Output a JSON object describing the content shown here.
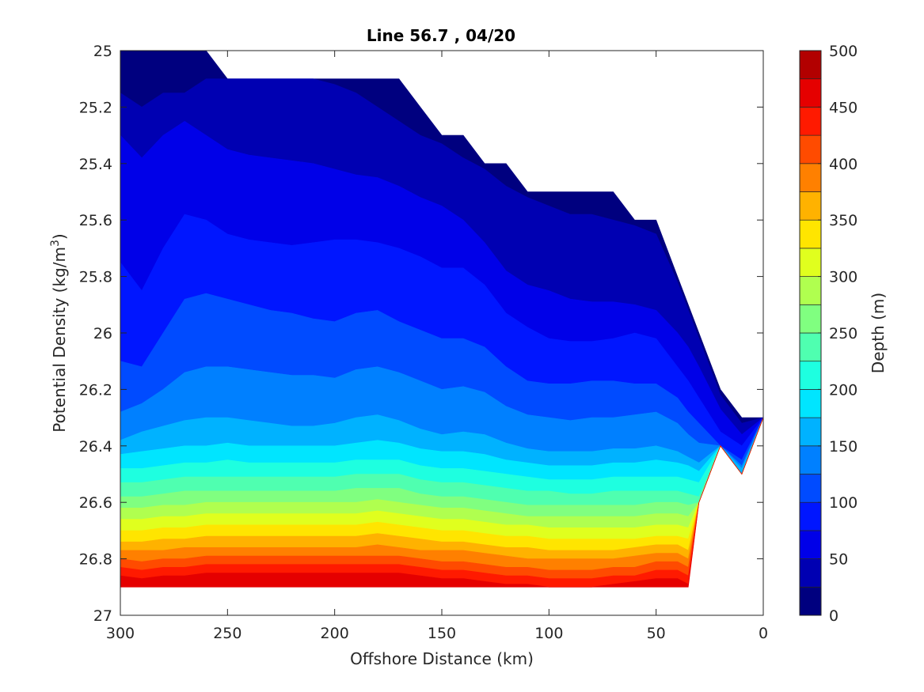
{
  "chart_data": {
    "type": "filled-contour",
    "title": "Line 56.7 , 04/20",
    "xlabel": "Offshore Distance (km)",
    "ylabel": "Potential Density (kg/m",
    "ylabel_sup": "3",
    "ylabel_end": ")",
    "xlim": [
      0,
      300
    ],
    "x_reversed": true,
    "ylim": [
      25,
      27
    ],
    "y_reversed": true,
    "x_ticks": [
      300,
      250,
      200,
      150,
      100,
      50,
      0
    ],
    "y_ticks": [
      25,
      25.2,
      25.4,
      25.6,
      25.8,
      26,
      26.2,
      26.4,
      26.6,
      26.8,
      27
    ],
    "y_tick_labels": [
      "25",
      "25.2",
      "25.4",
      "25.6",
      "25.8",
      "26",
      "26.2",
      "26.4",
      "26.6",
      "26.8",
      "27"
    ],
    "colorbar": {
      "label": "Depth (m)",
      "range": [
        0,
        500
      ],
      "ticks": [
        0,
        50,
        100,
        150,
        200,
        250,
        300,
        350,
        400,
        450,
        500
      ],
      "levels": [
        0,
        25,
        50,
        75,
        100,
        125,
        150,
        175,
        200,
        225,
        250,
        275,
        300,
        325,
        350,
        375,
        400,
        425,
        450,
        475,
        500
      ],
      "colors": [
        "#00007f",
        "#0000b2",
        "#0000e8",
        "#0016ff",
        "#004bff",
        "#0080ff",
        "#00b2ff",
        "#00e5ff",
        "#1effe0",
        "#4fffb0",
        "#80ff80",
        "#b0ff4f",
        "#e0ff1e",
        "#ffe500",
        "#ffb200",
        "#ff8000",
        "#ff4b00",
        "#ff1a00",
        "#e50000",
        "#b20000"
      ]
    },
    "x": [
      300,
      290,
      280,
      270,
      260,
      250,
      240,
      230,
      220,
      210,
      200,
      190,
      180,
      170,
      160,
      150,
      140,
      130,
      120,
      110,
      100,
      90,
      80,
      70,
      60,
      50,
      40,
      35,
      30,
      20,
      10,
      0
    ],
    "boundary": {
      "top": [
        25,
        25,
        25,
        25,
        25,
        25.1,
        25.1,
        25.1,
        25.1,
        25.1,
        25.1,
        25.1,
        25.1,
        25.1,
        25.2,
        25.3,
        25.3,
        25.4,
        25.4,
        25.5,
        25.5,
        25.5,
        25.5,
        25.5,
        25.6,
        25.6,
        25.8,
        25.9,
        26.0,
        26.2,
        26.3,
        26.3
      ],
      "bottom": [
        26.9,
        26.9,
        26.9,
        26.9,
        26.9,
        26.9,
        26.9,
        26.9,
        26.9,
        26.9,
        26.9,
        26.9,
        26.9,
        26.9,
        26.9,
        26.9,
        26.9,
        26.9,
        26.9,
        26.9,
        26.9,
        26.9,
        26.9,
        26.9,
        26.9,
        26.9,
        26.9,
        26.9,
        26.6,
        26.4,
        26.5,
        26.3
      ]
    },
    "isopleths": {
      "level_25": [
        25.15,
        25.2,
        25.15,
        25.15,
        25.1,
        25.1,
        25.1,
        25.1,
        25.1,
        25.1,
        25.12,
        25.15,
        25.2,
        25.25,
        25.3,
        25.33,
        25.38,
        25.42,
        25.48,
        25.52,
        25.55,
        25.58,
        25.58,
        25.6,
        25.62,
        25.65,
        25.82,
        25.92,
        26.02,
        26.22,
        26.32,
        26.3
      ],
      "level_50": [
        25.3,
        25.38,
        25.3,
        25.25,
        25.3,
        25.35,
        25.37,
        25.38,
        25.39,
        25.4,
        25.42,
        25.44,
        25.45,
        25.48,
        25.52,
        25.55,
        25.6,
        25.68,
        25.78,
        25.83,
        25.85,
        25.88,
        25.89,
        25.89,
        25.9,
        25.92,
        26.0,
        26.05,
        26.12,
        26.27,
        26.36,
        26.3
      ],
      "level_75": [
        25.75,
        25.85,
        25.7,
        25.58,
        25.6,
        25.65,
        25.67,
        25.68,
        25.69,
        25.68,
        25.67,
        25.67,
        25.68,
        25.7,
        25.73,
        25.77,
        25.77,
        25.83,
        25.93,
        25.98,
        26.02,
        26.03,
        26.03,
        26.02,
        26.0,
        26.02,
        26.12,
        26.17,
        26.23,
        26.35,
        26.4,
        26.3
      ],
      "level_100": [
        26.1,
        26.12,
        26.0,
        25.88,
        25.86,
        25.88,
        25.9,
        25.92,
        25.93,
        25.95,
        25.96,
        25.93,
        25.92,
        25.96,
        25.99,
        26.02,
        26.02,
        26.05,
        26.12,
        26.17,
        26.18,
        26.18,
        26.17,
        26.17,
        26.18,
        26.18,
        26.23,
        26.28,
        26.32,
        26.4,
        26.45,
        26.3
      ],
      "level_125": [
        26.28,
        26.25,
        26.2,
        26.14,
        26.12,
        26.12,
        26.13,
        26.14,
        26.15,
        26.15,
        26.16,
        26.13,
        26.12,
        26.14,
        26.17,
        26.2,
        26.19,
        26.21,
        26.26,
        26.29,
        26.3,
        26.31,
        26.3,
        26.3,
        26.29,
        26.28,
        26.32,
        26.36,
        26.39,
        26.42,
        26.47,
        26.3
      ],
      "level_150": [
        26.38,
        26.35,
        26.33,
        26.31,
        26.3,
        26.3,
        26.31,
        26.32,
        26.33,
        26.33,
        26.32,
        26.3,
        26.29,
        26.31,
        26.34,
        26.36,
        26.35,
        26.36,
        26.39,
        26.41,
        26.42,
        26.42,
        26.42,
        26.41,
        26.41,
        26.4,
        26.42,
        26.44,
        26.46,
        26.45,
        26.48,
        26.3
      ],
      "level_175": [
        26.43,
        26.42,
        26.41,
        26.4,
        26.4,
        26.39,
        26.4,
        26.4,
        26.4,
        26.4,
        26.4,
        26.39,
        26.38,
        26.39,
        26.41,
        26.42,
        26.42,
        26.43,
        26.45,
        26.46,
        26.47,
        26.47,
        26.47,
        26.46,
        26.46,
        26.45,
        26.46,
        26.47,
        26.49,
        26.5,
        26.5,
        26.3
      ],
      "level_200": [
        26.48,
        26.48,
        26.47,
        26.46,
        26.46,
        26.45,
        26.46,
        26.46,
        26.46,
        26.46,
        26.46,
        26.45,
        26.45,
        26.45,
        26.47,
        26.48,
        26.48,
        26.49,
        26.5,
        26.51,
        26.52,
        26.52,
        26.52,
        26.51,
        26.51,
        26.51,
        26.51,
        26.52,
        26.53,
        26.53,
        26.53,
        26.3
      ],
      "level_225": [
        26.53,
        26.53,
        26.52,
        26.51,
        26.51,
        26.51,
        26.51,
        26.51,
        26.51,
        26.51,
        26.51,
        26.5,
        26.5,
        26.5,
        26.52,
        26.53,
        26.53,
        26.54,
        26.55,
        26.56,
        26.56,
        26.57,
        26.57,
        26.56,
        26.56,
        26.56,
        26.56,
        26.57,
        26.58,
        26.58,
        26.58,
        26.3
      ],
      "level_250": [
        26.58,
        26.58,
        26.57,
        26.56,
        26.56,
        26.56,
        26.56,
        26.56,
        26.56,
        26.56,
        26.56,
        26.55,
        26.55,
        26.55,
        26.57,
        26.58,
        26.58,
        26.59,
        26.6,
        26.61,
        26.61,
        26.61,
        26.61,
        26.61,
        26.61,
        26.6,
        26.6,
        26.61,
        26.62,
        26.62,
        26.62,
        26.3
      ],
      "level_275": [
        26.62,
        26.62,
        26.61,
        26.61,
        26.6,
        26.6,
        26.6,
        26.6,
        26.6,
        26.6,
        26.6,
        26.6,
        26.59,
        26.6,
        26.61,
        26.62,
        26.62,
        26.63,
        26.64,
        26.65,
        26.65,
        26.65,
        26.65,
        26.65,
        26.65,
        26.64,
        26.64,
        26.65,
        26.66,
        26.66,
        26.66,
        26.3
      ],
      "level_300": [
        26.66,
        26.66,
        26.65,
        26.65,
        26.64,
        26.64,
        26.64,
        26.64,
        26.64,
        26.64,
        26.64,
        26.64,
        26.63,
        26.64,
        26.65,
        26.66,
        26.66,
        26.67,
        26.68,
        26.68,
        26.69,
        26.69,
        26.69,
        26.69,
        26.69,
        26.68,
        26.68,
        26.69,
        26.7,
        26.7,
        26.7,
        26.3
      ],
      "level_325": [
        26.7,
        26.7,
        26.69,
        26.69,
        26.68,
        26.68,
        26.68,
        26.68,
        26.68,
        26.68,
        26.68,
        26.68,
        26.67,
        26.68,
        26.69,
        26.7,
        26.7,
        26.71,
        26.72,
        26.72,
        26.73,
        26.73,
        26.73,
        26.73,
        26.73,
        26.72,
        26.72,
        26.73,
        26.74,
        26.74,
        26.74,
        26.3
      ],
      "level_350": [
        26.74,
        26.74,
        26.73,
        26.73,
        26.72,
        26.72,
        26.72,
        26.72,
        26.72,
        26.72,
        26.72,
        26.72,
        26.71,
        26.72,
        26.73,
        26.74,
        26.74,
        26.75,
        26.76,
        26.76,
        26.77,
        26.77,
        26.77,
        26.77,
        26.76,
        26.75,
        26.75,
        26.77,
        26.78,
        26.78,
        26.78,
        26.3
      ],
      "level_375": [
        26.77,
        26.77,
        26.77,
        26.76,
        26.76,
        26.76,
        26.76,
        26.76,
        26.76,
        26.76,
        26.76,
        26.76,
        26.75,
        26.76,
        26.77,
        26.77,
        26.77,
        26.78,
        26.79,
        26.8,
        26.8,
        26.8,
        26.8,
        26.8,
        26.79,
        26.78,
        26.78,
        26.8,
        26.81,
        26.81,
        26.81,
        26.3
      ],
      "level_400": [
        26.8,
        26.81,
        26.8,
        26.8,
        26.79,
        26.79,
        26.79,
        26.79,
        26.79,
        26.79,
        26.79,
        26.79,
        26.79,
        26.79,
        26.8,
        26.81,
        26.81,
        26.82,
        26.83,
        26.83,
        26.84,
        26.84,
        26.84,
        26.83,
        26.83,
        26.81,
        26.81,
        26.83,
        26.84,
        26.84,
        26.84,
        26.3
      ],
      "level_425": [
        26.83,
        26.84,
        26.83,
        26.83,
        26.82,
        26.82,
        26.82,
        26.82,
        26.82,
        26.82,
        26.82,
        26.82,
        26.82,
        26.82,
        26.83,
        26.84,
        26.84,
        26.85,
        26.86,
        26.86,
        26.87,
        26.87,
        26.87,
        26.86,
        26.86,
        26.84,
        26.84,
        26.86,
        26.87,
        26.87,
        26.87,
        26.3
      ],
      "level_450": [
        26.86,
        26.87,
        26.86,
        26.86,
        26.85,
        26.85,
        26.85,
        26.85,
        26.85,
        26.85,
        26.85,
        26.85,
        26.85,
        26.85,
        26.86,
        26.87,
        26.87,
        26.88,
        26.89,
        26.89,
        26.9,
        26.9,
        26.9,
        26.89,
        26.88,
        26.87,
        26.87,
        26.89,
        26.9,
        26.9,
        26.9,
        26.3
      ]
    }
  }
}
